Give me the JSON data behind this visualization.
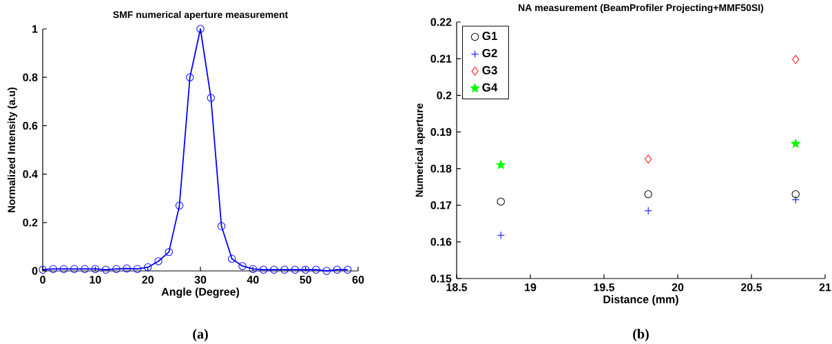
{
  "chart_data": [
    {
      "type": "line",
      "title": "SMF numerical aperture measurement",
      "xlabel": "Angle (Degree)",
      "ylabel": "Normalized Intensity (a.u)",
      "x": [
        0,
        2,
        4,
        6,
        8,
        10,
        12,
        14,
        16,
        18,
        20,
        22,
        24,
        26,
        28,
        30,
        32,
        34,
        36,
        38,
        40,
        42,
        44,
        46,
        48,
        50,
        52,
        54,
        56,
        58
      ],
      "values": [
        0.005,
        0.008,
        0.008,
        0.008,
        0.008,
        0.008,
        0.005,
        0.008,
        0.01,
        0.008,
        0.015,
        0.04,
        0.078,
        0.27,
        0.8,
        1.0,
        0.715,
        0.185,
        0.05,
        0.02,
        0.008,
        0.005,
        0.005,
        0.005,
        0.005,
        0.005,
        0.005,
        0.0,
        0.005,
        0.005
      ],
      "color": "#0000ff",
      "marker": "circle",
      "line_style": "solid",
      "xlim": [
        0,
        60
      ],
      "ylim": [
        0,
        1
      ],
      "xticks": [
        0,
        10,
        20,
        30,
        40,
        50,
        60
      ],
      "yticks": [
        0,
        0.2,
        0.4,
        0.6,
        0.8,
        1
      ],
      "annotations": [
        "(a)"
      ]
    },
    {
      "type": "scatter",
      "title": "NA measurement (BeamProfiler Projecting+MMF50SI)",
      "xlabel": "Distance (mm)",
      "ylabel": "Numerical aperture",
      "x": [
        18.8,
        19.8,
        20.8
      ],
      "series": [
        {
          "name": "G1",
          "color": "#000000",
          "marker": "circle",
          "values": [
            0.171,
            0.173,
            0.173
          ]
        },
        {
          "name": "G2",
          "color": "#0000ff",
          "marker": "cross",
          "values": [
            0.1618,
            0.1685,
            0.1715
          ]
        },
        {
          "name": "G3",
          "color": "#ff0000",
          "marker": "diamond",
          "values": [
            null,
            0.1826,
            0.2098
          ]
        },
        {
          "name": "G4",
          "color": "#00ff00",
          "marker": "star",
          "values": [
            0.181,
            null,
            0.1868
          ]
        }
      ],
      "legend": "top left",
      "xlim": [
        18.5,
        21
      ],
      "ylim": [
        0.15,
        0.22
      ],
      "xticks": [
        18.5,
        19,
        19.5,
        20,
        20.5,
        21
      ],
      "yticks": [
        0.15,
        0.16,
        0.17,
        0.18,
        0.19,
        0.2,
        0.21,
        0.22
      ],
      "annotations": [
        "(b)"
      ]
    }
  ]
}
